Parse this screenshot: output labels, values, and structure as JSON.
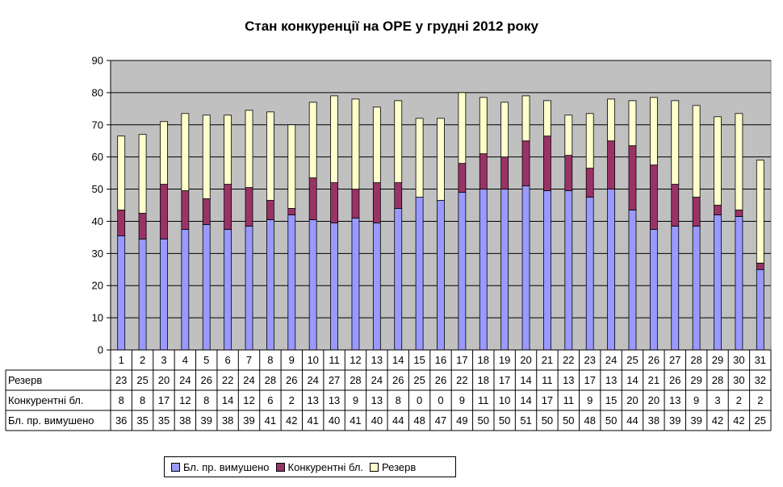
{
  "chart_data": {
    "type": "bar",
    "stacked": true,
    "title": "Стан конкуренції на ОРЕ  у грудні 2012 року",
    "xlabel": "",
    "ylabel": "",
    "ylim": [
      0,
      90
    ],
    "yticks": [
      "0",
      "10",
      "20",
      "30",
      "40",
      "50",
      "60",
      "70",
      "80",
      "90"
    ],
    "grid": true,
    "plot_background": "#c0c0c0",
    "legend_position": "bottom",
    "categories": [
      "1",
      "2",
      "3",
      "4",
      "5",
      "6",
      "7",
      "8",
      "9",
      "10",
      "11",
      "12",
      "13",
      "14",
      "15",
      "16",
      "17",
      "18",
      "19",
      "20",
      "21",
      "22",
      "23",
      "24",
      "25",
      "26",
      "27",
      "28",
      "29",
      "30",
      "31"
    ],
    "series": [
      {
        "name": "Бл. пр. вимушено",
        "color": "#9999ff",
        "values": [
          35.5,
          34.5,
          34.5,
          37.5,
          39,
          37.5,
          38.5,
          40.5,
          42,
          40.5,
          39.5,
          41,
          39.5,
          44,
          47.5,
          46.5,
          49,
          50,
          50,
          51,
          49.5,
          49.5,
          47.5,
          50,
          43.5,
          37.5,
          38.5,
          38.5,
          42,
          41.5,
          25
        ],
        "table_values": [
          "36",
          "35",
          "35",
          "38",
          "39",
          "38",
          "39",
          "41",
          "42",
          "41",
          "40",
          "41",
          "40",
          "44",
          "48",
          "47",
          "49",
          "50",
          "50",
          "51",
          "50",
          "50",
          "48",
          "50",
          "44",
          "38",
          "39",
          "39",
          "42",
          "42",
          "25"
        ]
      },
      {
        "name": "Конкурентні бл.",
        "color": "#993366",
        "values": [
          8,
          8,
          17,
          12,
          8,
          14,
          12,
          6,
          2,
          13,
          12.5,
          9,
          12.5,
          8,
          0,
          0,
          9,
          11,
          10,
          14,
          17,
          11,
          9,
          15,
          20,
          20,
          13,
          9,
          3,
          2,
          2
        ],
        "table_values": [
          "8",
          "8",
          "17",
          "12",
          "8",
          "14",
          "12",
          "6",
          "2",
          "13",
          "13",
          "9",
          "13",
          "8",
          "0",
          "0",
          "9",
          "11",
          "10",
          "14",
          "17",
          "11",
          "9",
          "15",
          "20",
          "20",
          "13",
          "9",
          "3",
          "2",
          "2"
        ]
      },
      {
        "name": "Резерв",
        "color": "#ffffcc",
        "values": [
          23,
          24.5,
          19.5,
          24,
          26,
          21.5,
          24,
          27.5,
          26,
          23.5,
          27,
          28,
          23.5,
          25.5,
          24.5,
          25.5,
          22,
          17.5,
          17,
          14,
          11,
          12.5,
          17,
          13,
          14,
          21,
          26,
          28.5,
          27.5,
          30,
          32
        ],
        "table_values": [
          "23",
          "25",
          "20",
          "24",
          "26",
          "22",
          "24",
          "28",
          "26",
          "24",
          "27",
          "28",
          "24",
          "26",
          "25",
          "26",
          "22",
          "18",
          "17",
          "14",
          "11",
          "13",
          "17",
          "13",
          "14",
          "21",
          "26",
          "29",
          "28",
          "30",
          "32"
        ]
      }
    ],
    "table_row_order": [
      "Резерв",
      "Конкурентні бл.",
      "Бл. пр. вимушено"
    ]
  },
  "legend": {
    "items": [
      {
        "label": "Бл. пр. вимушено",
        "color": "#9999ff"
      },
      {
        "label": "Конкурентні бл.",
        "color": "#993366"
      },
      {
        "label": "Резерв",
        "color": "#ffffcc"
      }
    ]
  }
}
